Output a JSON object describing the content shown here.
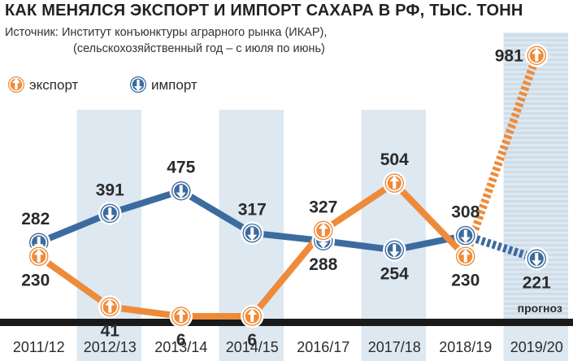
{
  "header": {
    "title": "КАК МЕНЯЛСЯ ЭКСПОРТ И ИМПОРТ САХАРА В РФ, ТЫС. ТОНН",
    "source_line1": "Источник: Институт конъюнктуры аграрного рынка (ИКАР),",
    "source_line2": "(сельскохозяйственный год – с июля по июнь)"
  },
  "colors": {
    "export": "#ee8b3a",
    "import": "#3c6b9f",
    "band": "#dde8f1",
    "baseline": "#1a1a1a"
  },
  "chart_data": {
    "type": "line",
    "categories": [
      "2011/12",
      "2012/13",
      "2013/14",
      "2014/15",
      "2016/17",
      "2017/18",
      "2018/19",
      "2019/20"
    ],
    "series": [
      {
        "name": "экспорт",
        "values": [
          230,
          41,
          6,
          6,
          327,
          504,
          230,
          981
        ],
        "icon": "arrow-up-icon"
      },
      {
        "name": "импорт",
        "values": [
          282,
          391,
          475,
          317,
          288,
          254,
          308,
          221
        ],
        "icon": "arrow-down-icon"
      }
    ],
    "forecast_category": "2019/20",
    "forecast_label": "прогноз",
    "ylim": [
      0,
      1000
    ],
    "legend_position": "top-left",
    "shaded_columns": [
      "2012/13",
      "2014/15",
      "2017/18",
      "2019/20"
    ],
    "xlabel": "",
    "ylabel": ""
  }
}
